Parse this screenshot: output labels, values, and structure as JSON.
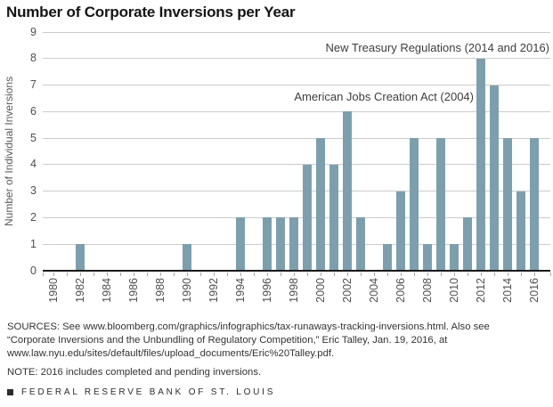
{
  "chart_data": {
    "type": "bar",
    "title": "Number of Corporate Inversions per Year",
    "ylabel": "Number of Individual Inversions",
    "xlabel": "",
    "ylim": [
      0,
      9
    ],
    "yticks": [
      0,
      1,
      2,
      3,
      4,
      5,
      6,
      7,
      8,
      9
    ],
    "grid": true,
    "legend_position": "none",
    "categories": [
      1980,
      1981,
      1982,
      1983,
      1984,
      1985,
      1986,
      1987,
      1988,
      1989,
      1990,
      1991,
      1992,
      1993,
      1994,
      1995,
      1996,
      1997,
      1998,
      1999,
      2000,
      2001,
      2002,
      2003,
      2004,
      2005,
      2006,
      2007,
      2008,
      2009,
      2010,
      2011,
      2012,
      2013,
      2014,
      2015,
      2016
    ],
    "values": [
      0,
      0,
      1,
      0,
      0,
      0,
      0,
      0,
      0,
      0,
      1,
      0,
      0,
      0,
      2,
      0,
      2,
      2,
      2,
      4,
      5,
      4,
      6,
      2,
      0,
      1,
      3,
      5,
      1,
      5,
      1,
      2,
      8,
      7,
      5,
      3,
      5
    ],
    "xtick_label_years": [
      1980,
      1982,
      1984,
      1986,
      1988,
      1990,
      1992,
      1994,
      1996,
      1998,
      2000,
      2002,
      2004,
      2006,
      2008,
      2010,
      2012,
      2014,
      2016
    ],
    "annotations": [
      {
        "id": "new-treasury-regulations",
        "text": "New Treasury Regulations (2014 and 2016)"
      },
      {
        "id": "american-jobs-creation-act",
        "text": "American Jobs Creation Act (2004)"
      }
    ],
    "bar_color": "#7d9fad",
    "gridline_color": "#cbcbcb",
    "axis_color": "#1a1a1a"
  },
  "notes": {
    "sources_lines": [
      "SOURCES: See www.bloomberg.com/graphics/infographics/tax-runaways-tracking-inversions.html. Also see",
      "“Corporate Inversions and the Unbundling of Regulatory Competition,” Eric Talley, Jan. 19, 2016, at",
      "www.law.nyu.edu/sites/default/files/upload_documents/Eric%20Talley.pdf."
    ],
    "note": "NOTE: 2016 includes completed and pending inversions.",
    "brand": "FEDERAL RESERVE BANK OF ST. LOUIS"
  }
}
